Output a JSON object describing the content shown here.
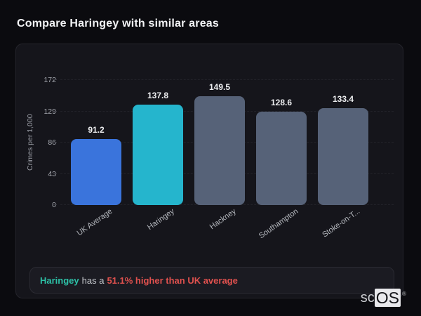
{
  "page": {
    "title": "Compare Haringey with similar areas"
  },
  "chart_data": {
    "type": "bar",
    "categories": [
      "UK Average",
      "Haringey",
      "Hackney",
      "Southampton",
      "Stoke-on-T..."
    ],
    "values": [
      91.2,
      137.8,
      149.5,
      128.6,
      133.4
    ],
    "value_labels": [
      "91.2",
      "137.8",
      "149.5",
      "128.6",
      "133.4"
    ],
    "colors": [
      "#3a74dc",
      "#25b5cd",
      "#566278",
      "#566278",
      "#566278"
    ],
    "title": "Compare Haringey with similar areas",
    "xlabel": "",
    "ylabel": "Crimes per 1,000",
    "yticks": [
      0,
      43,
      86,
      129,
      172
    ],
    "ylim": [
      0,
      172
    ],
    "grid": "dashed-horizontal",
    "legend": "none",
    "highlight_category": "Haringey"
  },
  "note": {
    "area": "Haringey",
    "connector": "has a",
    "stat": "51.1% higher than UK average",
    "area_color": "#2dc0a6",
    "stat_color": "#e0514e"
  },
  "logo": {
    "prefix": "sc",
    "suffix": "OS",
    "registered": "®"
  },
  "theme": {
    "page_bg": "#0b0b0f",
    "card_bg": "#15151b",
    "card_border": "#24242b",
    "note_bg": "#1b1b22",
    "accent_blue": "#3a74dc",
    "accent_teal": "#25b5cd",
    "neutral_bar": "#566278",
    "note_teal": "#2dc0a6",
    "note_red": "#e0514e"
  }
}
